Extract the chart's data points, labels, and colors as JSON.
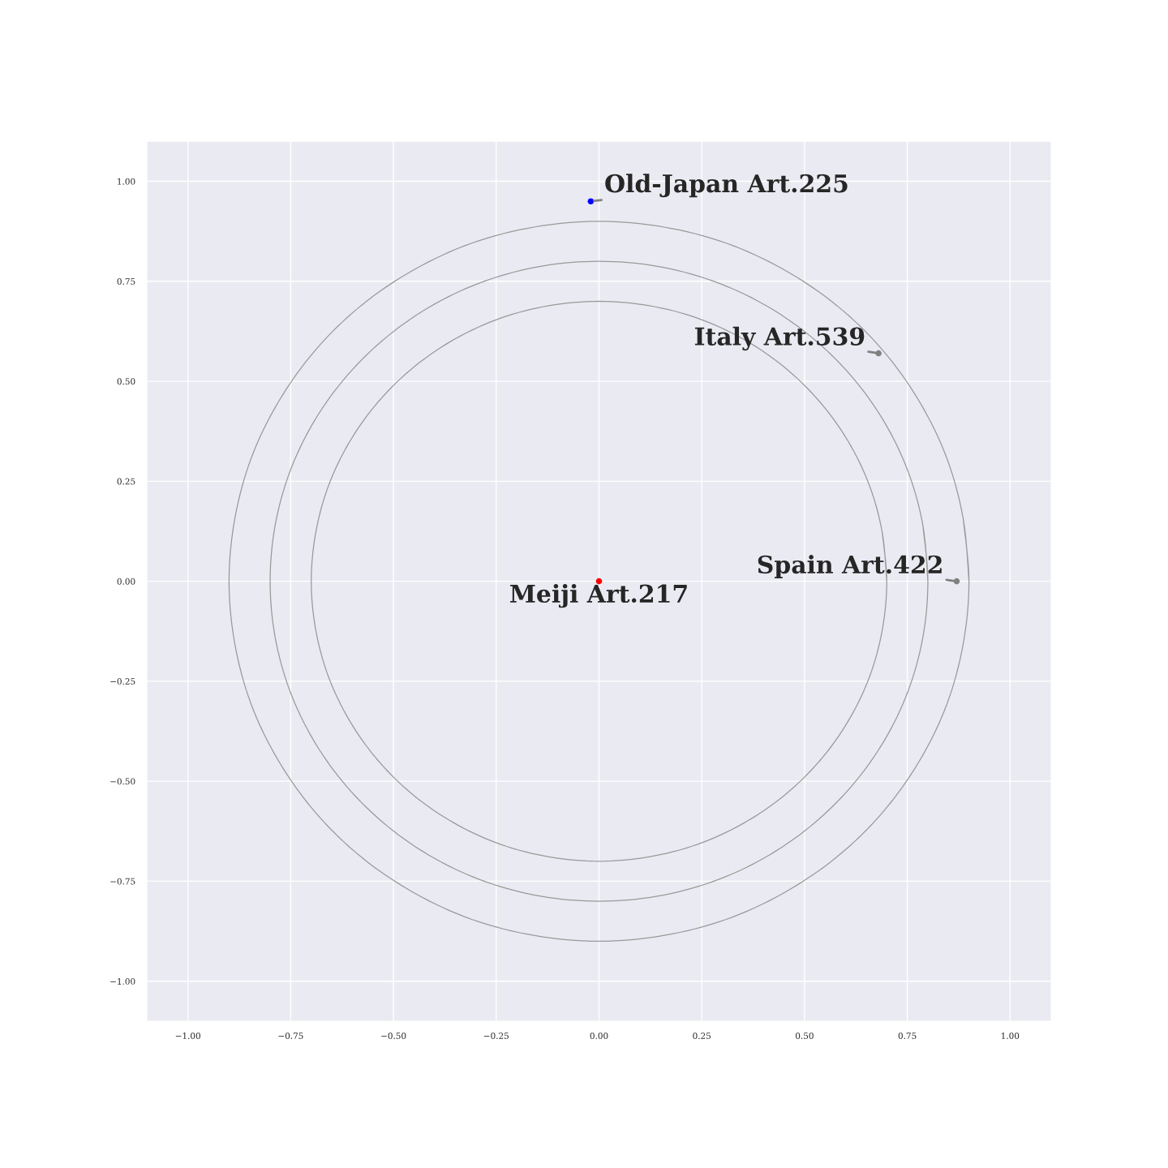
{
  "chart_data": {
    "type": "scatter",
    "xlim": [
      -1.1,
      1.1
    ],
    "ylim": [
      -1.1,
      1.1
    ],
    "xticks": [
      {
        "value": -1,
        "label": "−1.00"
      },
      {
        "value": -0.75,
        "label": "−0.75"
      },
      {
        "value": -0.5,
        "label": "−0.50"
      },
      {
        "value": -0.25,
        "label": "−0.25"
      },
      {
        "value": 0,
        "label": "0.00"
      },
      {
        "value": 0.25,
        "label": "0.25"
      },
      {
        "value": 0.5,
        "label": "0.50"
      },
      {
        "value": 0.75,
        "label": "0.75"
      },
      {
        "value": 1,
        "label": "1.00"
      }
    ],
    "yticks": [
      {
        "value": -1,
        "label": "−1.00"
      },
      {
        "value": -0.75,
        "label": "−0.75"
      },
      {
        "value": -0.5,
        "label": "−0.50"
      },
      {
        "value": -0.25,
        "label": "−0.25"
      },
      {
        "value": 0,
        "label": "0.00"
      },
      {
        "value": 0.25,
        "label": "0.25"
      },
      {
        "value": 0.5,
        "label": "0.50"
      },
      {
        "value": 0.75,
        "label": "0.75"
      },
      {
        "value": 1,
        "label": "1.00"
      }
    ],
    "grid": true,
    "series": [
      {
        "type": "line",
        "color": "#999999",
        "marker": "none",
        "line_style": "solid",
        "x": [
          0.9,
          0.886,
          0.846,
          0.779,
          0.689,
          0.579,
          0.45,
          0.308,
          0.156,
          0,
          -0.156,
          -0.308,
          -0.45,
          -0.579,
          -0.689,
          -0.779,
          -0.846,
          -0.886,
          -0.9,
          -0.886,
          -0.846,
          -0.779,
          -0.689,
          -0.579,
          -0.45,
          -0.308,
          -0.156,
          0,
          0.156,
          0.308,
          0.45,
          0.579,
          0.689,
          0.779,
          0.846,
          0.886,
          0.9,
          0.886
        ],
        "values": [
          0,
          0.156,
          0.308,
          0.45,
          0.579,
          0.689,
          0.779,
          0.846,
          0.886,
          0.9,
          0.886,
          0.846,
          0.779,
          0.689,
          0.579,
          0.45,
          0.308,
          0.156,
          0,
          -0.156,
          -0.308,
          -0.45,
          -0.579,
          -0.689,
          -0.779,
          -0.846,
          -0.886,
          -0.9,
          -0.886,
          -0.846,
          -0.779,
          -0.689,
          -0.579,
          -0.45,
          -0.308,
          -0.156,
          0,
          0.156
        ]
      },
      {
        "type": "line",
        "color": "#999999",
        "marker": "none",
        "line_style": "solid",
        "x": [
          0.8,
          0.788,
          0.752,
          0.693,
          0.613,
          0.514,
          0.4,
          0.274,
          0.139,
          0,
          -0.139,
          -0.274,
          -0.4,
          -0.514,
          -0.613,
          -0.693,
          -0.752,
          -0.788,
          -0.8,
          -0.788,
          -0.752,
          -0.693,
          -0.613,
          -0.514,
          -0.4,
          -0.274,
          -0.139,
          0,
          0.139,
          0.274,
          0.4,
          0.514,
          0.613,
          0.693,
          0.752,
          0.788,
          0.8,
          0.788
        ],
        "values": [
          0,
          0.139,
          0.274,
          0.4,
          0.514,
          0.613,
          0.693,
          0.752,
          0.788,
          0.8,
          0.788,
          0.752,
          0.693,
          0.613,
          0.514,
          0.4,
          0.274,
          0.139,
          0,
          -0.139,
          -0.274,
          -0.4,
          -0.514,
          -0.613,
          -0.693,
          -0.752,
          -0.788,
          -0.8,
          -0.788,
          -0.752,
          -0.693,
          -0.613,
          -0.514,
          -0.4,
          -0.274,
          -0.139,
          0,
          0.139
        ]
      },
      {
        "type": "line",
        "color": "#999999",
        "marker": "none",
        "line_style": "solid",
        "x": [
          0.7,
          0.689,
          0.658,
          0.606,
          0.536,
          0.45,
          0.35,
          0.239,
          0.122,
          0,
          -0.122,
          -0.239,
          -0.35,
          -0.45,
          -0.536,
          -0.606,
          -0.658,
          -0.689,
          -0.7,
          -0.689,
          -0.658,
          -0.606,
          -0.536,
          -0.45,
          -0.35,
          -0.239,
          -0.122,
          0,
          0.122,
          0.239,
          0.35,
          0.45,
          0.536,
          0.606,
          0.658,
          0.689,
          0.7,
          0.689
        ],
        "values": [
          0,
          0.122,
          0.239,
          0.35,
          0.45,
          0.536,
          0.606,
          0.658,
          0.689,
          0.7,
          0.689,
          0.658,
          0.606,
          0.536,
          0.45,
          0.35,
          0.239,
          0.122,
          0,
          -0.122,
          -0.239,
          -0.35,
          -0.45,
          -0.536,
          -0.606,
          -0.658,
          -0.689,
          -0.7,
          -0.689,
          -0.658,
          -0.606,
          -0.536,
          -0.45,
          -0.35,
          -0.239,
          -0.122,
          0,
          0.122
        ]
      },
      {
        "marker": "circle",
        "x": [
          -0.02,
          0.68,
          0.87,
          0
        ],
        "values": [
          0.95,
          0.57,
          0,
          0
        ],
        "colors": [
          "#0000ff",
          "#808080",
          "#808080",
          "#ff0000"
        ]
      }
    ],
    "annotations": [
      {
        "text": "Old-Japan Art.225",
        "x": -0.02,
        "y": 0.95
      },
      {
        "text": "Italy Art.539",
        "x": 0.68,
        "y": 0.57
      },
      {
        "text": "Spain Art.422",
        "x": 0.87,
        "y": 0
      },
      {
        "text": "Meiji Art.217",
        "x": 0,
        "y": 0
      }
    ]
  }
}
